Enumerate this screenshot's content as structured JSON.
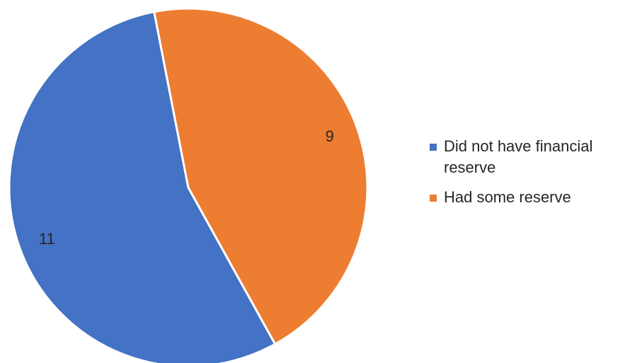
{
  "chart_data": {
    "type": "pie",
    "categories": [
      "Did not have financial reserve",
      "Had some reserve"
    ],
    "values": [
      11,
      9
    ],
    "data_labels": [
      "11",
      "9"
    ],
    "colors": [
      "#4472C4",
      "#ED7D31"
    ],
    "start_angle_deg": -11,
    "direction": "counterclockwise",
    "legend_position": "right"
  }
}
